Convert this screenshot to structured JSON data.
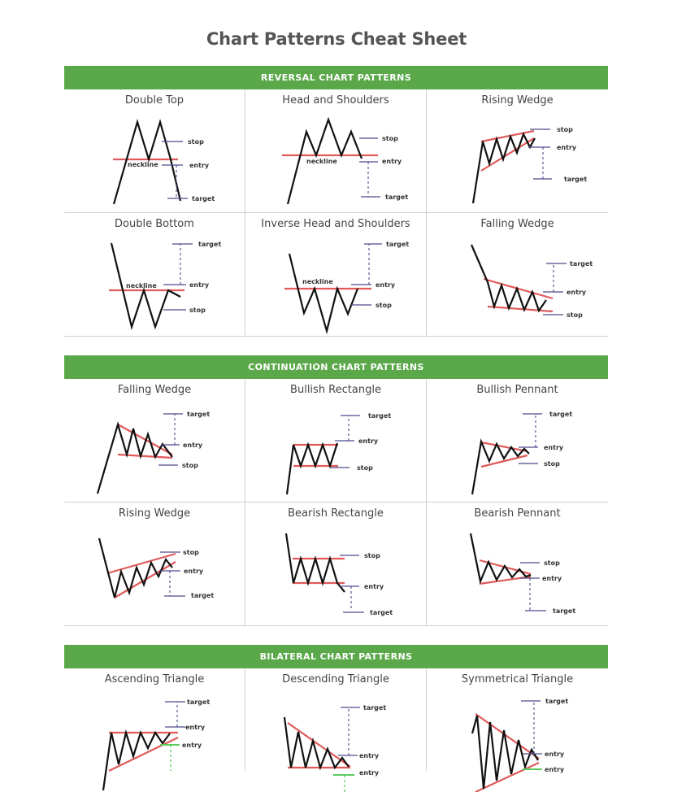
{
  "title": "Chart Patterns Cheat Sheet",
  "labels": {
    "stop": "stop",
    "entry": "entry",
    "target": "target",
    "neckline": "neckline"
  },
  "sections": [
    {
      "banner": "REVERSAL CHART PATTERNS",
      "patterns": [
        {
          "name": "Double Top"
        },
        {
          "name": "Head and Shoulders"
        },
        {
          "name": "Rising Wedge"
        },
        {
          "name": "Double Bottom"
        },
        {
          "name": "Inverse Head and Shoulders"
        },
        {
          "name": "Falling Wedge"
        }
      ]
    },
    {
      "banner": "CONTINUATION CHART PATTERNS",
      "patterns": [
        {
          "name": "Falling Wedge"
        },
        {
          "name": "Bullish Rectangle"
        },
        {
          "name": "Bullish Pennant"
        },
        {
          "name": "Rising Wedge"
        },
        {
          "name": "Bearish Rectangle"
        },
        {
          "name": "Bearish Pennant"
        }
      ]
    },
    {
      "banner": "BILATERAL CHART PATTERNS",
      "patterns": [
        {
          "name": "Ascending Triangle"
        },
        {
          "name": "Descending Triangle"
        },
        {
          "name": "Symmetrical Triangle"
        }
      ]
    }
  ],
  "colors": {
    "banner": "#5aa84a",
    "trendline": "#e05a5a",
    "marker": "#4a4a8c",
    "price": "#111111",
    "alt_marker": "#5ecb5e"
  }
}
